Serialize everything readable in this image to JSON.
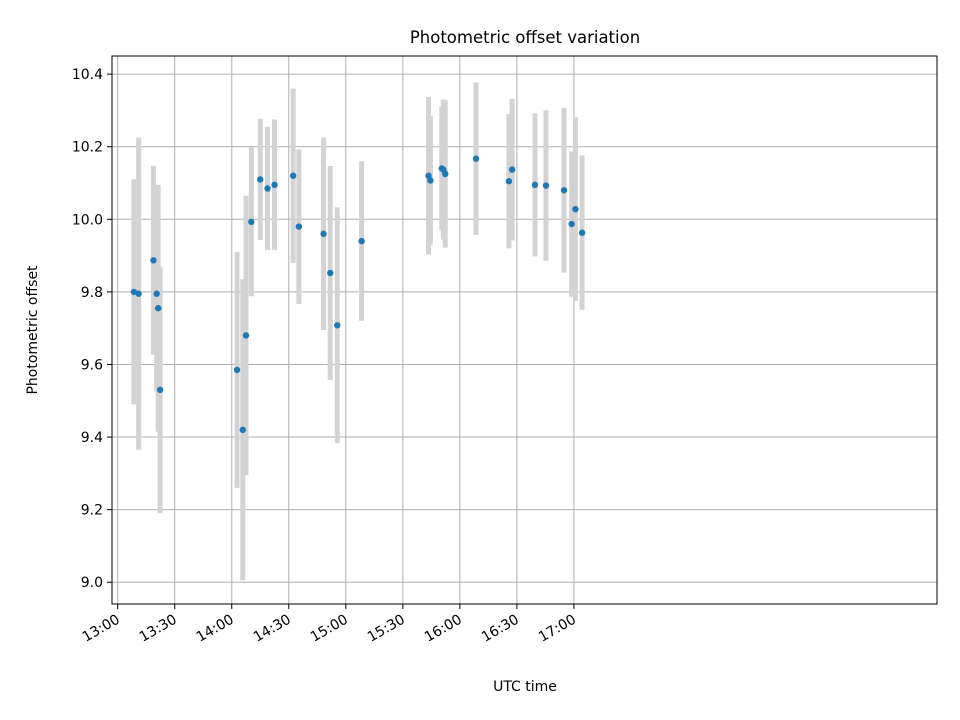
{
  "chart_data": {
    "type": "scatter",
    "title": "Photometric offset variation",
    "xlabel": "UTC time",
    "ylabel": "Photometric offset",
    "xlim_minutes": [
      777,
      1211
    ],
    "ylim": [
      8.94,
      10.45
    ],
    "x_ticks": [
      {
        "minutes": 780,
        "label": "13:00"
      },
      {
        "minutes": 810,
        "label": "13:30"
      },
      {
        "minutes": 840,
        "label": "14:00"
      },
      {
        "minutes": 870,
        "label": "14:30"
      },
      {
        "minutes": 900,
        "label": "15:00"
      },
      {
        "minutes": 930,
        "label": "15:30"
      },
      {
        "minutes": 960,
        "label": "16:00"
      },
      {
        "minutes": 990,
        "label": "16:30"
      },
      {
        "minutes": 1020,
        "label": "17:00"
      }
    ],
    "y_ticks": [
      {
        "value": 9.0,
        "label": "9.0"
      },
      {
        "value": 9.2,
        "label": "9.2"
      },
      {
        "value": 9.4,
        "label": "9.4"
      },
      {
        "value": 9.6,
        "label": "9.6"
      },
      {
        "value": 9.8,
        "label": "9.8"
      },
      {
        "value": 10.0,
        "label": "10.0"
      },
      {
        "value": 10.2,
        "label": "10.2"
      },
      {
        "value": 10.4,
        "label": "10.4"
      }
    ],
    "grid": true,
    "series": [
      {
        "name": "offset",
        "marker_color": "#1f77b4",
        "errorbar_color": "#d3d3d3",
        "points": [
          {
            "t": 788.5,
            "y": 9.8,
            "err": 0.31
          },
          {
            "t": 791.0,
            "y": 9.795,
            "err": 0.43
          },
          {
            "t": 798.8,
            "y": 9.887,
            "err": 0.26
          },
          {
            "t": 800.5,
            "y": 9.795,
            "err": 0.27
          },
          {
            "t": 801.3,
            "y": 9.755,
            "err": 0.34
          },
          {
            "t": 802.3,
            "y": 9.53,
            "err": 0.34
          },
          {
            "t": 842.8,
            "y": 9.585,
            "err": 0.325
          },
          {
            "t": 845.8,
            "y": 9.42,
            "err": 0.415
          },
          {
            "t": 847.5,
            "y": 9.68,
            "err": 0.385
          },
          {
            "t": 850.3,
            "y": 9.993,
            "err": 0.205
          },
          {
            "t": 855.0,
            "y": 10.11,
            "err": 0.167
          },
          {
            "t": 858.8,
            "y": 10.085,
            "err": 0.17
          },
          {
            "t": 862.5,
            "y": 10.095,
            "err": 0.18
          },
          {
            "t": 872.3,
            "y": 10.12,
            "err": 0.24
          },
          {
            "t": 875.3,
            "y": 9.98,
            "err": 0.213
          },
          {
            "t": 888.3,
            "y": 9.96,
            "err": 0.265
          },
          {
            "t": 891.8,
            "y": 9.852,
            "err": 0.295
          },
          {
            "t": 895.5,
            "y": 9.708,
            "err": 0.325
          },
          {
            "t": 908.3,
            "y": 9.94,
            "err": 0.22
          },
          {
            "t": 943.5,
            "y": 10.12,
            "err": 0.217
          },
          {
            "t": 944.5,
            "y": 10.107,
            "err": 0.177
          },
          {
            "t": 950.5,
            "y": 10.14,
            "err": 0.17
          },
          {
            "t": 951.3,
            "y": 10.137,
            "err": 0.193
          },
          {
            "t": 952.3,
            "y": 10.125,
            "err": 0.203
          },
          {
            "t": 968.5,
            "y": 10.167,
            "err": 0.21
          },
          {
            "t": 985.8,
            "y": 10.105,
            "err": 0.185
          },
          {
            "t": 987.5,
            "y": 10.137,
            "err": 0.195
          },
          {
            "t": 999.5,
            "y": 10.095,
            "err": 0.197
          },
          {
            "t": 1005.3,
            "y": 10.093,
            "err": 0.207
          },
          {
            "t": 1014.8,
            "y": 10.08,
            "err": 0.227
          },
          {
            "t": 1018.8,
            "y": 9.987,
            "err": 0.2
          },
          {
            "t": 1020.8,
            "y": 10.028,
            "err": 0.253
          },
          {
            "t": 1024.3,
            "y": 9.963,
            "err": 0.213
          }
        ]
      }
    ]
  }
}
